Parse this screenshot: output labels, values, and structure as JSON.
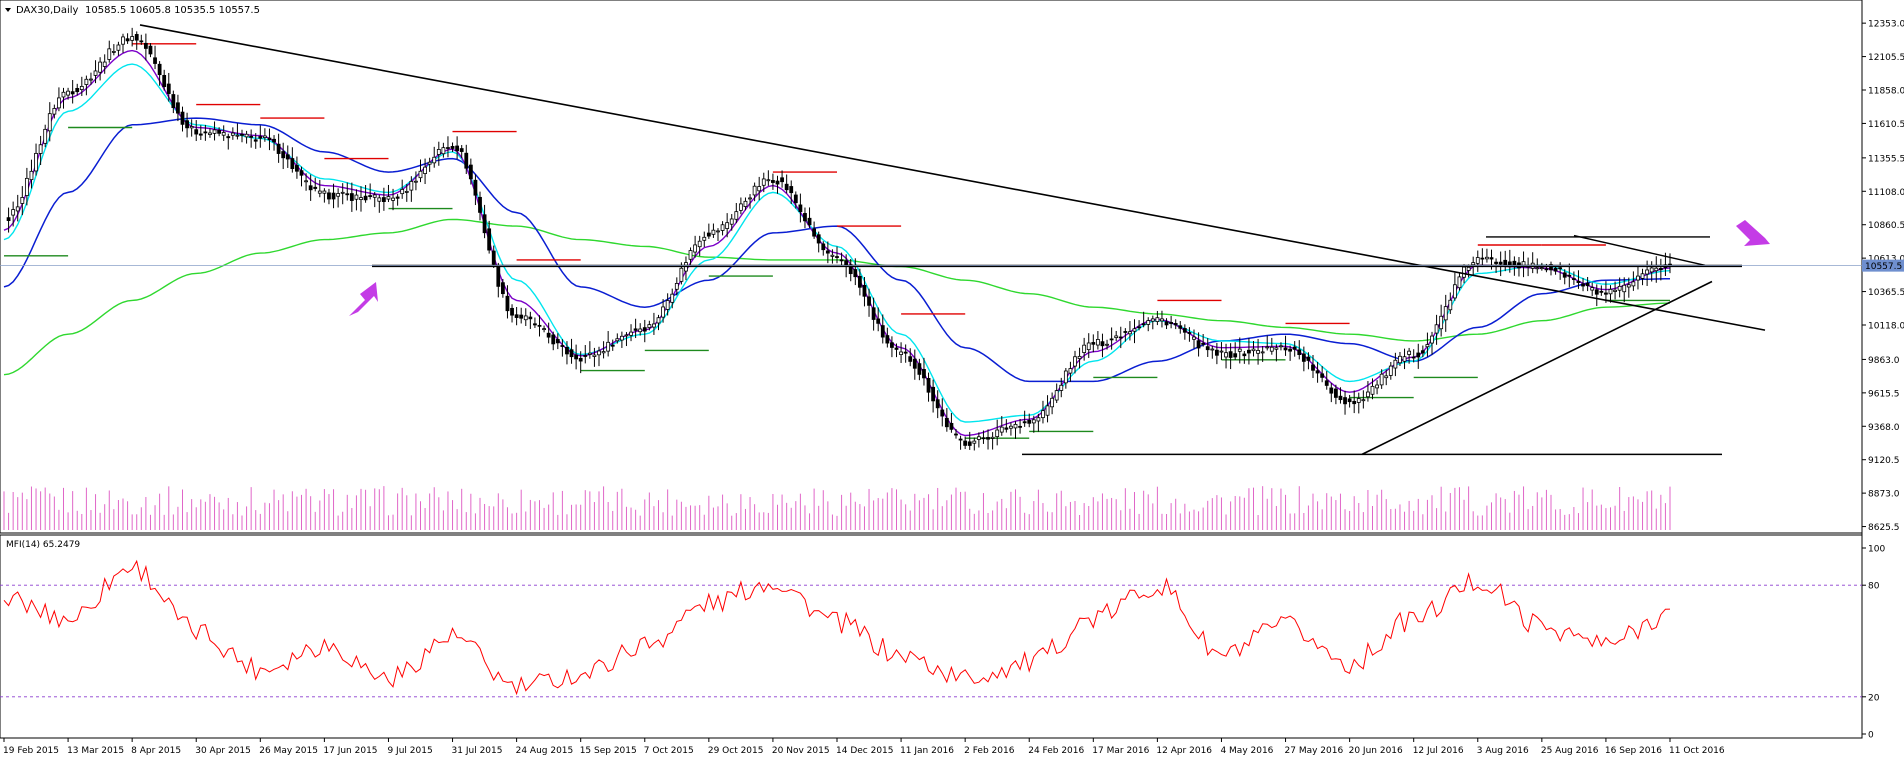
{
  "header": {
    "symbol_label": "DAX30,Daily",
    "ohlc_text": "10585.5 10605.8 10535.5 10557.5",
    "indicator_label": "MFI(14) 65.2479"
  },
  "price_axis": {
    "ticks": [
      "12353.0",
      "12105.5",
      "11858.0",
      "11610.5",
      "11355.5",
      "11108.0",
      "10860.5",
      "10613.0",
      "10365.5",
      "10118.0",
      "9863.0",
      "9615.5",
      "9368.0",
      "9120.5",
      "8873.0",
      "8625.5"
    ],
    "current_price_label": "10557.5",
    "range": [
      8600,
      12480
    ]
  },
  "mfi_axis": {
    "ticks": [
      "100",
      "80",
      "20",
      "0"
    ],
    "levels": [
      80,
      20
    ],
    "range": [
      0,
      100
    ]
  },
  "time_axis": {
    "labels": [
      "19 Feb 2015",
      "13 Mar 2015",
      "8 Apr 2015",
      "30 Apr 2015",
      "26 May 2015",
      "17 Jun 2015",
      "9 Jul 2015",
      "31 Jul 2015",
      "24 Aug 2015",
      "15 Sep 2015",
      "7 Oct 2015",
      "29 Oct 2015",
      "20 Nov 2015",
      "14 Dec 2015",
      "11 Jan 2016",
      "2 Feb 2016",
      "24 Feb 2016",
      "17 Mar 2016",
      "12 Apr 2016",
      "4 May 2016",
      "27 May 2016",
      "20 Jun 2016",
      "12 Jul 2016",
      "3 Aug 2016",
      "25 Aug 2016",
      "16 Sep 2016",
      "11 Oct 2016"
    ]
  },
  "colors": {
    "ema_fast": "#00e5ee",
    "ema_mid": "#7b00c8",
    "ma_50": "#0a1ed2",
    "ma_200": "#2fd82f",
    "stop_red": "#e00000",
    "stop_green": "#1e8a1e",
    "candle": "#000000",
    "volume": "#e066c8",
    "mfi_line": "#ff0000",
    "mfi_levels": "#8a3ccf",
    "arrow": "#c43ce6",
    "trendline": "#000000",
    "grid_text": "#000000"
  },
  "chart_data": [
    {
      "type": "candlestick",
      "title": "DAX30,Daily",
      "x": [
        "19 Feb 2015",
        "13 Mar 2015",
        "8 Apr 2015",
        "30 Apr 2015",
        "26 May 2015",
        "17 Jun 2015",
        "9 Jul 2015",
        "31 Jul 2015",
        "24 Aug 2015",
        "15 Sep 2015",
        "7 Oct 2015",
        "29 Oct 2015",
        "20 Nov 2015",
        "14 Dec 2015",
        "11 Jan 2016",
        "2 Feb 2016",
        "24 Feb 2016",
        "17 Mar 2016",
        "12 Apr 2016",
        "4 May 2016",
        "27 May 2016",
        "20 Jun 2016",
        "12 Jul 2016",
        "3 Aug 2016",
        "25 Aug 2016",
        "16 Sep 2016",
        "11 Oct 2016"
      ],
      "series": [
        {
          "name": "Close",
          "values": [
            10900,
            11850,
            12250,
            11550,
            11500,
            11080,
            11050,
            11450,
            10180,
            9880,
            10100,
            10800,
            11200,
            10600,
            9900,
            9250,
            9400,
            9980,
            10160,
            9900,
            9950,
            9550,
            9900,
            10600,
            10550,
            10350,
            10557.5
          ]
        },
        {
          "name": "EMA fast",
          "values": [
            10750,
            11700,
            12050,
            11600,
            11500,
            11200,
            11100,
            11400,
            10450,
            9900,
            10050,
            10600,
            11100,
            10700,
            10050,
            9400,
            9450,
            9850,
            10150,
            10000,
            9980,
            9700,
            9850,
            10500,
            10560,
            10420,
            10520
          ]
        },
        {
          "name": "EMA mid",
          "values": [
            10820,
            11800,
            12150,
            11580,
            11520,
            11150,
            11080,
            11420,
            10300,
            9890,
            10080,
            10700,
            11150,
            10650,
            9950,
            9300,
            9420,
            9920,
            10160,
            9950,
            9960,
            9620,
            9880,
            10560,
            10540,
            10380,
            10540
          ]
        },
        {
          "name": "MA 50",
          "values": [
            10400,
            11100,
            11600,
            11650,
            11600,
            11400,
            11250,
            11350,
            10950,
            10400,
            10250,
            10450,
            10800,
            10850,
            10450,
            9950,
            9700,
            9700,
            9850,
            10000,
            10050,
            9980,
            9850,
            10100,
            10350,
            10450,
            10460
          ]
        },
        {
          "name": "MA 200",
          "values": [
            9750,
            10050,
            10300,
            10500,
            10650,
            10750,
            10800,
            10900,
            10850,
            10750,
            10700,
            10620,
            10600,
            10600,
            10550,
            10450,
            10350,
            10250,
            10200,
            10150,
            10100,
            10050,
            10000,
            10050,
            10150,
            10250,
            10280
          ]
        },
        {
          "name": "MFI(14)",
          "values": [
            72,
            62,
            90,
            55,
            35,
            48,
            30,
            52,
            25,
            32,
            48,
            70,
            82,
            60,
            42,
            30,
            38,
            62,
            80,
            42,
            58,
            38,
            62,
            82,
            58,
            48,
            65.25
          ]
        }
      ],
      "ylim": [
        8600,
        12480
      ],
      "mfi_ylim": [
        0,
        100
      ],
      "annotations": [
        "support line ~10555",
        "descending trendline from Apr 2015 high",
        "support line ~9160",
        "ascending trendline from Jun 2016 low",
        "Aug–Oct 2016 triangle"
      ],
      "grid": false,
      "legend": "none"
    }
  ]
}
